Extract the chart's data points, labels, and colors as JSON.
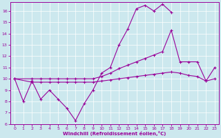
{
  "bg_color": "#cce8ee",
  "line_color": "#990099",
  "xlabel": "Windchill (Refroidissement éolien,°C)",
  "xlim_min": -0.5,
  "xlim_max": 23.5,
  "ylim_min": 6,
  "ylim_max": 16.8,
  "xticks": [
    0,
    1,
    2,
    3,
    4,
    5,
    6,
    7,
    8,
    9,
    10,
    11,
    12,
    13,
    14,
    15,
    16,
    17,
    18,
    19,
    20,
    21,
    22,
    23
  ],
  "yticks": [
    6,
    7,
    8,
    9,
    10,
    11,
    12,
    13,
    14,
    15,
    16
  ],
  "series_main_x": [
    0,
    1,
    2,
    3,
    4,
    5,
    6,
    7,
    8,
    9,
    10,
    11,
    12,
    13,
    14,
    15,
    16,
    17,
    18
  ],
  "series_main_y": [
    10,
    8,
    9.8,
    8.2,
    9.0,
    8.2,
    7.4,
    6.3,
    7.8,
    9.0,
    10.5,
    11.0,
    13.0,
    14.4,
    16.2,
    16.5,
    16.0,
    16.6,
    15.9
  ],
  "series_upper_x": [
    0,
    2,
    3,
    4,
    5,
    6,
    7,
    8,
    9,
    10,
    11,
    12,
    13,
    14,
    15,
    16,
    17,
    18,
    19,
    20,
    21,
    22,
    23
  ],
  "series_upper_y": [
    10,
    10,
    10,
    10,
    10,
    10,
    10,
    10,
    10,
    10.2,
    10.5,
    10.9,
    11.2,
    11.5,
    11.8,
    12.1,
    12.4,
    14.3,
    11.5,
    11.5,
    11.5,
    9.8,
    11.0
  ],
  "series_lower_x": [
    0,
    2,
    3,
    4,
    5,
    6,
    7,
    8,
    9,
    10,
    11,
    12,
    13,
    14,
    15,
    16,
    17,
    18,
    19,
    20,
    21,
    22,
    23
  ],
  "series_lower_y": [
    10,
    9.7,
    9.7,
    9.7,
    9.7,
    9.7,
    9.7,
    9.7,
    9.7,
    9.8,
    9.9,
    10.0,
    10.1,
    10.2,
    10.3,
    10.4,
    10.5,
    10.6,
    10.5,
    10.3,
    10.2,
    9.8,
    10.0
  ]
}
